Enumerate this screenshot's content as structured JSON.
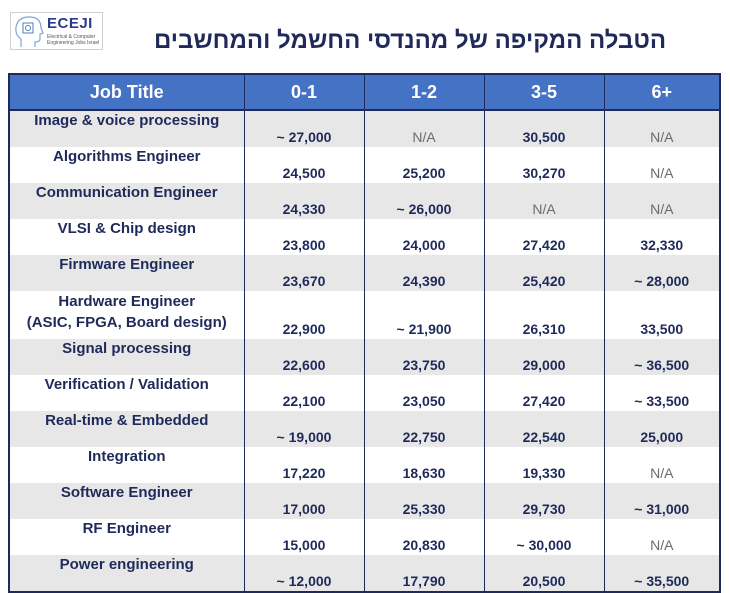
{
  "logo": {
    "brand": "ECEJI",
    "tagline": "Electrical & Computer Engineering Jobs Israel"
  },
  "title": "הטבלה המקיפה של מהנדסי החשמל והמחשבים",
  "colors": {
    "header_bg": "#4472c4",
    "text": "#1f2a5a",
    "row_alt": "#e7e7e7"
  },
  "table": {
    "headers": [
      "Job Title",
      "0-1",
      "1-2",
      "3-5",
      "6+"
    ],
    "rows": [
      {
        "title": "Image & voice processing",
        "values": [
          "~ 27,000",
          "N/A",
          "30,500",
          "N/A"
        ]
      },
      {
        "title": "Algorithms Engineer",
        "values": [
          "24,500",
          "25,200",
          "30,270",
          "N/A"
        ]
      },
      {
        "title": "Communication Engineer",
        "values": [
          "24,330",
          "~ 26,000",
          "N/A",
          "N/A"
        ]
      },
      {
        "title": "VLSI & Chip design",
        "values": [
          "23,800",
          "24,000",
          "27,420",
          "32,330"
        ]
      },
      {
        "title": "Firmware Engineer",
        "values": [
          "23,670",
          "24,390",
          "25,420",
          "~ 28,000"
        ]
      },
      {
        "title": "Hardware Engineer",
        "subtitle": "(ASIC, FPGA, Board design)",
        "values": [
          "22,900",
          "~ 21,900",
          "26,310",
          "33,500"
        ]
      },
      {
        "title": "Signal processing",
        "values": [
          "22,600",
          "23,750",
          "29,000",
          "~ 36,500"
        ]
      },
      {
        "title": "Verification / Validation",
        "values": [
          "22,100",
          "23,050",
          "27,420",
          "~ 33,500"
        ]
      },
      {
        "title": "Real-time & Embedded",
        "values": [
          "~ 19,000",
          "22,750",
          "22,540",
          "25,000"
        ]
      },
      {
        "title": "Integration",
        "values": [
          "17,220",
          "18,630",
          "19,330",
          "N/A"
        ]
      },
      {
        "title": "Software Engineer",
        "values": [
          "17,000",
          "25,330",
          "29,730",
          "~ 31,000"
        ]
      },
      {
        "title": "RF Engineer",
        "values": [
          "15,000",
          "20,830",
          "~ 30,000",
          "N/A"
        ]
      },
      {
        "title": "Power engineering",
        "values": [
          "~ 12,000",
          "17,790",
          "20,500",
          "~ 35,500"
        ]
      }
    ]
  }
}
